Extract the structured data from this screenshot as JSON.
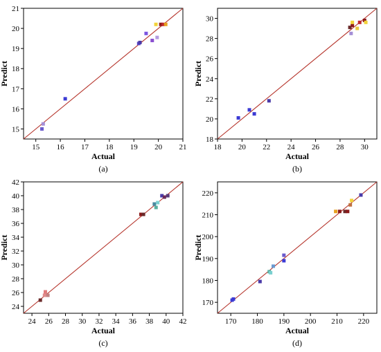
{
  "chart_data": [
    {
      "type": "scatter",
      "panel_label": "(a)",
      "xlabel": "Actual",
      "ylabel": "Predict",
      "xlim": [
        14.5,
        21
      ],
      "ylim": [
        14.5,
        21
      ],
      "xticks": [
        15,
        16,
        17,
        18,
        19,
        20,
        21
      ],
      "yticks": [
        15,
        16,
        17,
        18,
        19,
        20,
        21
      ],
      "grid": false,
      "fit_line": {
        "from": [
          14.5,
          14.5
        ],
        "to": [
          21,
          21
        ],
        "color": "#b5332a"
      },
      "points": [
        {
          "x": 15.25,
          "y": 15.0,
          "color": "#6a5acd"
        },
        {
          "x": 15.3,
          "y": 15.25,
          "color": "#a58fd6"
        },
        {
          "x": 16.2,
          "y": 16.5,
          "color": "#3b3ad4"
        },
        {
          "x": 19.2,
          "y": 19.25,
          "color": "#5a46c8"
        },
        {
          "x": 19.25,
          "y": 19.3,
          "color": "#4a3aa8"
        },
        {
          "x": 19.5,
          "y": 19.75,
          "color": "#7b55e0"
        },
        {
          "x": 19.75,
          "y": 19.4,
          "color": "#8a4fd0"
        },
        {
          "x": 19.95,
          "y": 19.55,
          "color": "#b59ae0"
        },
        {
          "x": 19.9,
          "y": 20.2,
          "color": "#f2d33a"
        },
        {
          "x": 20.1,
          "y": 20.2,
          "color": "#8b1a1a"
        },
        {
          "x": 20.2,
          "y": 20.2,
          "color": "#c0272d"
        },
        {
          "x": 20.3,
          "y": 20.2,
          "color": "#e8a020"
        }
      ]
    },
    {
      "type": "scatter",
      "panel_label": "(b)",
      "xlabel": "Actual",
      "ylabel": "Predict",
      "xlim": [
        18,
        31
      ],
      "ylim": [
        18,
        31
      ],
      "xticks": [
        18,
        20,
        22,
        24,
        26,
        28,
        30
      ],
      "yticks": [
        18,
        20,
        22,
        24,
        26,
        28,
        30
      ],
      "grid": false,
      "fit_line": {
        "from": [
          18,
          18
        ],
        "to": [
          31,
          31
        ],
        "color": "#b5332a"
      },
      "points": [
        {
          "x": 19.7,
          "y": 20.1,
          "color": "#3b3ad4"
        },
        {
          "x": 20.6,
          "y": 20.9,
          "color": "#3b3ad4"
        },
        {
          "x": 21.0,
          "y": 20.5,
          "color": "#3b3ad4"
        },
        {
          "x": 22.2,
          "y": 21.8,
          "color": "#4a3aa8"
        },
        {
          "x": 28.9,
          "y": 28.5,
          "color": "#a58fd6"
        },
        {
          "x": 28.8,
          "y": 29.1,
          "color": "#6b2a2a"
        },
        {
          "x": 29.0,
          "y": 29.3,
          "color": "#8b1a1a"
        },
        {
          "x": 29.0,
          "y": 29.6,
          "color": "#f2d33a"
        },
        {
          "x": 29.4,
          "y": 29.0,
          "color": "#e8c840"
        },
        {
          "x": 29.6,
          "y": 29.6,
          "color": "#c0272d"
        },
        {
          "x": 30.0,
          "y": 29.8,
          "color": "#8b1a1a"
        },
        {
          "x": 30.1,
          "y": 29.6,
          "color": "#f2d33a"
        }
      ]
    },
    {
      "type": "scatter",
      "panel_label": "(c)",
      "xlabel": "Actual",
      "ylabel": "Predict",
      "xlim": [
        23,
        42
      ],
      "ylim": [
        23,
        42
      ],
      "xticks": [
        24,
        26,
        28,
        30,
        32,
        34,
        36,
        38,
        40,
        42
      ],
      "yticks": [
        24,
        26,
        28,
        30,
        32,
        34,
        36,
        38,
        40,
        42
      ],
      "grid": false,
      "fit_line": {
        "from": [
          23,
          23
        ],
        "to": [
          42,
          42
        ],
        "color": "#b5332a"
      },
      "points": [
        {
          "x": 25.0,
          "y": 24.9,
          "color": "#6b2a2a"
        },
        {
          "x": 25.5,
          "y": 25.6,
          "color": "#e08a8a"
        },
        {
          "x": 25.6,
          "y": 26.1,
          "color": "#e07a7a"
        },
        {
          "x": 25.9,
          "y": 25.6,
          "color": "#c08080"
        },
        {
          "x": 37.0,
          "y": 37.3,
          "color": "#8b1a1a"
        },
        {
          "x": 37.3,
          "y": 37.3,
          "color": "#6b2a2a"
        },
        {
          "x": 38.6,
          "y": 38.8,
          "color": "#4a8aa0"
        },
        {
          "x": 38.8,
          "y": 38.3,
          "color": "#5ab0a0"
        },
        {
          "x": 39.0,
          "y": 39.0,
          "color": "#7ad0d0"
        },
        {
          "x": 39.5,
          "y": 40.0,
          "color": "#4a3aa8"
        },
        {
          "x": 39.8,
          "y": 39.8,
          "color": "#6b2a5a"
        },
        {
          "x": 40.2,
          "y": 40.0,
          "color": "#5a3a7a"
        }
      ]
    },
    {
      "type": "scatter",
      "panel_label": "(d)",
      "xlabel": "Actual",
      "ylabel": "Predict",
      "xlim": [
        165,
        225
      ],
      "ylim": [
        165,
        225
      ],
      "xticks": [
        170,
        180,
        190,
        200,
        210,
        220
      ],
      "yticks": [
        170,
        180,
        190,
        200,
        210,
        220
      ],
      "grid": false,
      "fit_line": {
        "from": [
          165,
          165
        ],
        "to": [
          225,
          225
        ],
        "color": "#b5332a"
      },
      "points": [
        {
          "x": 170.5,
          "y": 171.0,
          "color": "#3b3ad4"
        },
        {
          "x": 171.0,
          "y": 171.5,
          "color": "#3b3ad4"
        },
        {
          "x": 181.0,
          "y": 179.5,
          "color": "#4a3aa8"
        },
        {
          "x": 184.5,
          "y": 184.0,
          "color": "#5ab0a0"
        },
        {
          "x": 185.0,
          "y": 183.5,
          "color": "#7ad0d0"
        },
        {
          "x": 186.0,
          "y": 186.5,
          "color": "#6a9ad0"
        },
        {
          "x": 190.0,
          "y": 189.0,
          "color": "#3b3ad4"
        },
        {
          "x": 190.0,
          "y": 191.5,
          "color": "#6a5acd"
        },
        {
          "x": 209.5,
          "y": 211.5,
          "color": "#e8a020"
        },
        {
          "x": 211.0,
          "y": 211.5,
          "color": "#8b1a1a"
        },
        {
          "x": 213.0,
          "y": 211.5,
          "color": "#6b2a2a"
        },
        {
          "x": 214.0,
          "y": 211.5,
          "color": "#8b1a1a"
        },
        {
          "x": 215.0,
          "y": 214.5,
          "color": "#c07040"
        },
        {
          "x": 215.5,
          "y": 216.5,
          "color": "#f2d33a"
        },
        {
          "x": 219.0,
          "y": 219.0,
          "color": "#4a3aa8"
        }
      ]
    }
  ]
}
